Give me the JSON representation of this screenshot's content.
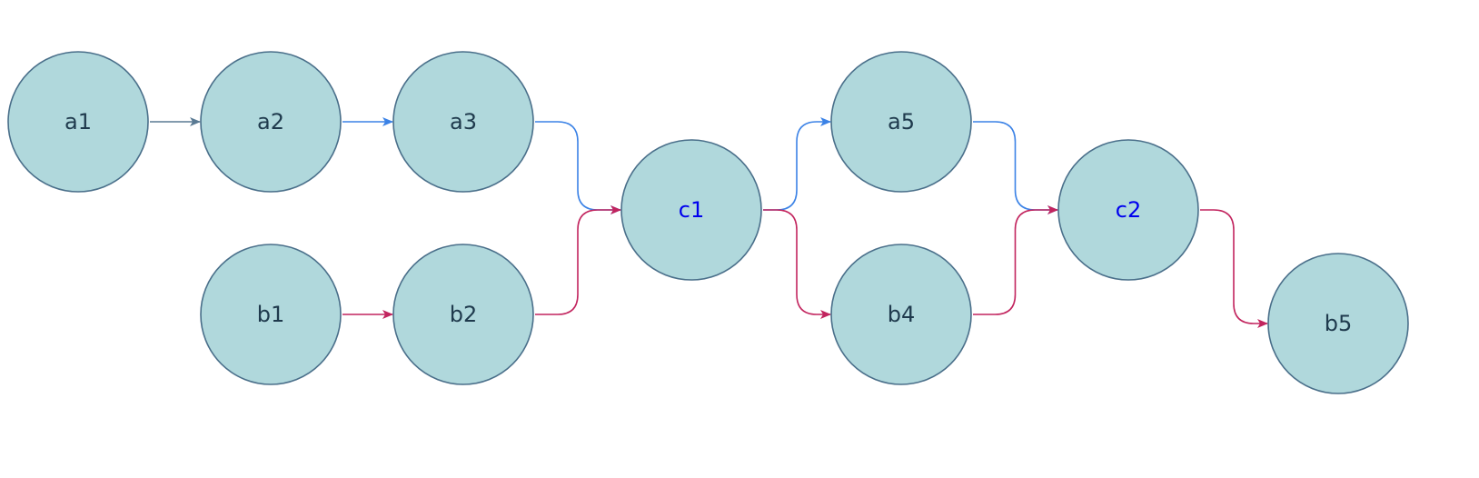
{
  "diagram": {
    "colors": {
      "node_fill": "#b0d8dc",
      "node_stroke": "#4a6f8a",
      "label_default": "#1f3a4d",
      "label_merge": "#0000ee",
      "edge_gray": "#5a7a93",
      "edge_blue": "#3b82e6",
      "edge_red": "#c2245e"
    },
    "nodes": [
      {
        "id": "a1",
        "label": "a1",
        "type": "default"
      },
      {
        "id": "a2",
        "label": "a2",
        "type": "default"
      },
      {
        "id": "a3",
        "label": "a3",
        "type": "default"
      },
      {
        "id": "b1",
        "label": "b1",
        "type": "default"
      },
      {
        "id": "b2",
        "label": "b2",
        "type": "default"
      },
      {
        "id": "c1",
        "label": "c1",
        "type": "merge"
      },
      {
        "id": "a5",
        "label": "a5",
        "type": "default"
      },
      {
        "id": "b4",
        "label": "b4",
        "type": "default"
      },
      {
        "id": "c2",
        "label": "c2",
        "type": "merge"
      },
      {
        "id": "b5",
        "label": "b5",
        "type": "default"
      }
    ],
    "edges": [
      {
        "from": "a1",
        "to": "a2",
        "color": "edge_gray"
      },
      {
        "from": "a2",
        "to": "a3",
        "color": "edge_blue"
      },
      {
        "from": "a3",
        "to": "c1",
        "color": "edge_blue"
      },
      {
        "from": "b1",
        "to": "b2",
        "color": "edge_red"
      },
      {
        "from": "b2",
        "to": "c1",
        "color": "edge_red"
      },
      {
        "from": "c1",
        "to": "a5",
        "color": "edge_blue"
      },
      {
        "from": "c1",
        "to": "b4",
        "color": "edge_red"
      },
      {
        "from": "a5",
        "to": "c2",
        "color": "edge_blue"
      },
      {
        "from": "b4",
        "to": "c2",
        "color": "edge_red"
      },
      {
        "from": "c2",
        "to": "b5",
        "color": "edge_red"
      }
    ]
  }
}
